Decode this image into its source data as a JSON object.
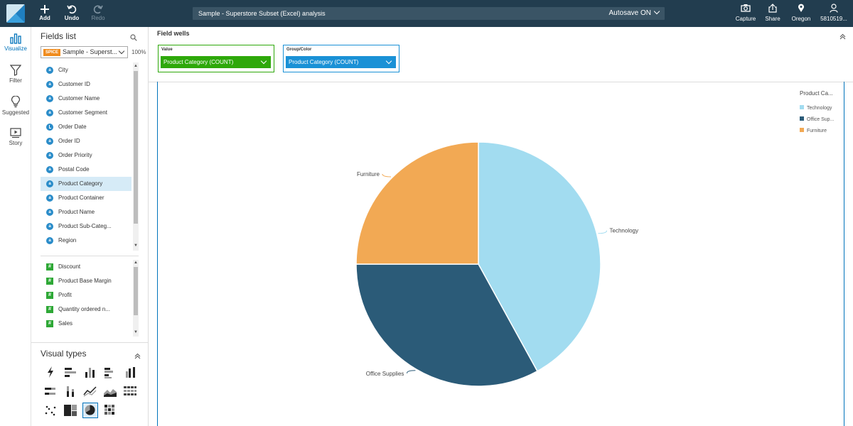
{
  "topbar": {
    "add_label": "Add",
    "undo_label": "Undo",
    "redo_label": "Redo",
    "analysis_title": "Sample - Superstore Subset (Excel) analysis",
    "autosave_label": "Autosave ON",
    "capture_label": "Capture",
    "share_label": "Share",
    "region_label": "Oregon",
    "user_label": "5810519..."
  },
  "rail": {
    "items": [
      {
        "label": "Visualize",
        "icon": "bar-chart-icon"
      },
      {
        "label": "Filter",
        "icon": "filter-icon"
      },
      {
        "label": "Suggested",
        "icon": "lightbulb-icon"
      },
      {
        "label": "Story",
        "icon": "story-icon"
      }
    ]
  },
  "fields_panel": {
    "title": "Fields list",
    "dataset_badge": "SPICE",
    "dataset_name": "Sample - Superst...",
    "spice_percent": "100%",
    "dimensions": [
      {
        "name": "City",
        "type": "dim"
      },
      {
        "name": "Customer ID",
        "type": "dim"
      },
      {
        "name": "Customer Name",
        "type": "dim"
      },
      {
        "name": "Customer Segment",
        "type": "dim"
      },
      {
        "name": "Order Date",
        "type": "date"
      },
      {
        "name": "Order ID",
        "type": "dim"
      },
      {
        "name": "Order Priority",
        "type": "dim"
      },
      {
        "name": "Postal Code",
        "type": "dim"
      },
      {
        "name": "Product Category",
        "type": "dim",
        "selected": true
      },
      {
        "name": "Product Container",
        "type": "dim"
      },
      {
        "name": "Product Name",
        "type": "dim"
      },
      {
        "name": "Product Sub-Categ...",
        "type": "dim"
      },
      {
        "name": "Region",
        "type": "dim"
      }
    ],
    "measures": [
      {
        "name": "Discount"
      },
      {
        "name": "Product Base Margin"
      },
      {
        "name": "Profit"
      },
      {
        "name": "Quantity ordered n..."
      },
      {
        "name": "Sales"
      }
    ],
    "visual_types_title": "Visual types"
  },
  "field_wells": {
    "title": "Field wells",
    "value_well": {
      "label": "Value",
      "field": "Product Category (COUNT)",
      "color": "#2ea80a"
    },
    "group_well": {
      "label": "Group/Color",
      "field": "Product Category (COUNT)",
      "color": "#1a91d6"
    }
  },
  "chart_data": {
    "type": "pie",
    "categories": [
      "Technology",
      "Office Supplies",
      "Furniture"
    ],
    "values": [
      42,
      33,
      25
    ],
    "colors": [
      "#a2dcf0",
      "#2b5b78",
      "#f2a954"
    ],
    "legend_title": "Product Ca...",
    "legend_labels": [
      "Technology",
      "Office Sup...",
      "Furniture"
    ],
    "legend_position": "top-right"
  }
}
